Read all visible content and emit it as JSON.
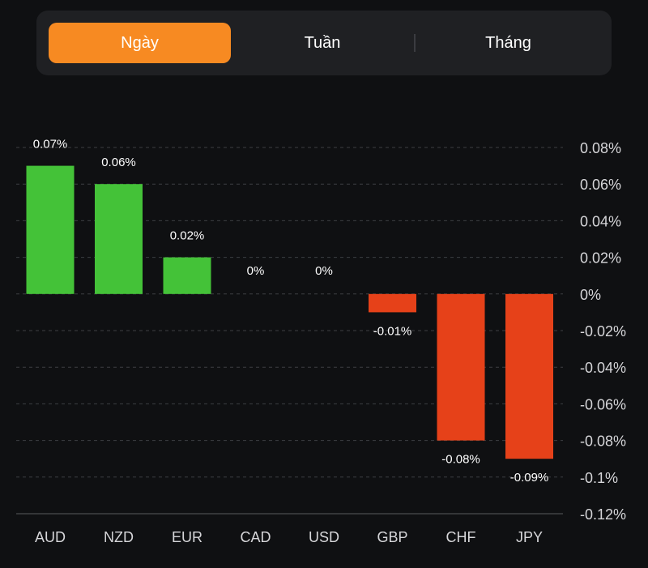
{
  "tabs": {
    "items": [
      {
        "label": "Ngày",
        "active": true
      },
      {
        "label": "Tuần",
        "active": false
      },
      {
        "label": "Tháng",
        "active": false
      }
    ],
    "active_color": "#f78a22"
  },
  "chart_data": {
    "type": "bar",
    "categories": [
      "AUD",
      "NZD",
      "EUR",
      "CAD",
      "USD",
      "GBP",
      "CHF",
      "JPY"
    ],
    "values": [
      0.07,
      0.06,
      0.02,
      0,
      0,
      -0.01,
      -0.08,
      -0.09
    ],
    "data_labels": [
      "0.07%",
      "0.06%",
      "0.02%",
      "0%",
      "0%",
      "-0.01%",
      "-0.08%",
      "-0.09%"
    ],
    "y_ticks": [
      0.08,
      0.06,
      0.04,
      0.02,
      0,
      -0.02,
      -0.04,
      -0.06,
      -0.08,
      -0.1,
      -0.12
    ],
    "y_tick_labels": [
      "0.08%",
      "0.06%",
      "0.04%",
      "0.02%",
      "0%",
      "-0.02%",
      "-0.04%",
      "-0.06%",
      "-0.08%",
      "-0.1%",
      "-0.12%"
    ],
    "ylim": [
      -0.12,
      0.08
    ],
    "y_axis_position": "right",
    "grid": true,
    "positive_color": "#44c238",
    "negative_color": "#e64119",
    "title": "",
    "xlabel": "",
    "ylabel": ""
  }
}
